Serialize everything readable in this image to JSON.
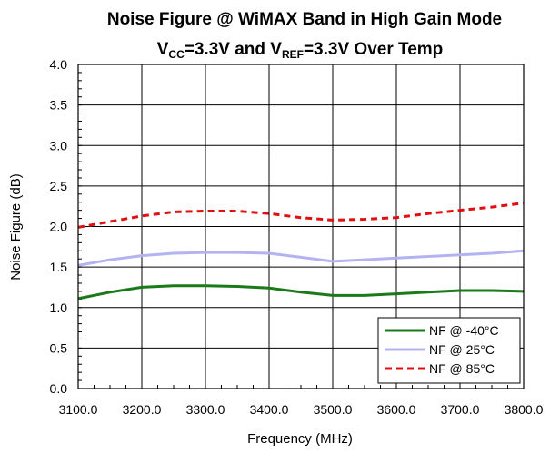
{
  "chart_data": {
    "type": "line",
    "title": "Noise Figure @ WiMAX Band in High Gain Mode",
    "subtitle": {
      "parts": [
        {
          "text": "V",
          "sub": false
        },
        {
          "text": "CC",
          "sub": true
        },
        {
          "text": "=3.3V and V",
          "sub": false
        },
        {
          "text": "REF",
          "sub": true
        },
        {
          "text": "=3.3V Over Temp",
          "sub": false
        }
      ]
    },
    "xlabel": "Frequency (MHz)",
    "ylabel": "Noise Figure (dB)",
    "xlim": [
      3100,
      3800
    ],
    "ylim": [
      0,
      4
    ],
    "x_ticks": [
      3100,
      3200,
      3300,
      3400,
      3500,
      3600,
      3700,
      3800
    ],
    "x_tick_labels": [
      "3100.0",
      "3200.0",
      "3300.0",
      "3400.0",
      "3500.0",
      "3600.0",
      "3700.0",
      "3800.0"
    ],
    "y_ticks": [
      0,
      0.5,
      1,
      1.5,
      2,
      2.5,
      3,
      3.5,
      4
    ],
    "y_tick_labels": [
      "0.0",
      "0.5",
      "1.0",
      "1.5",
      "2.0",
      "2.5",
      "3.0",
      "3.5",
      "4.0"
    ],
    "grid": true,
    "legend_position": "bottom-right",
    "x": [
      3100,
      3150,
      3200,
      3250,
      3300,
      3350,
      3400,
      3450,
      3500,
      3550,
      3600,
      3650,
      3700,
      3750,
      3800
    ],
    "series": [
      {
        "name": "NF @ -40°C",
        "color": "#1a7a1a",
        "dash": "solid",
        "values": [
          1.11,
          1.19,
          1.25,
          1.27,
          1.27,
          1.26,
          1.24,
          1.19,
          1.15,
          1.15,
          1.17,
          1.19,
          1.21,
          1.21,
          1.2
        ]
      },
      {
        "name": "NF @ 25°C",
        "color": "#b3b3f2",
        "dash": "solid",
        "values": [
          1.52,
          1.59,
          1.64,
          1.67,
          1.68,
          1.68,
          1.67,
          1.62,
          1.57,
          1.59,
          1.61,
          1.63,
          1.65,
          1.67,
          1.7
        ]
      },
      {
        "name": "NF @ 85°C",
        "color": "#e01010",
        "dash": "dashed",
        "values": [
          1.99,
          2.06,
          2.13,
          2.18,
          2.19,
          2.19,
          2.16,
          2.11,
          2.08,
          2.09,
          2.11,
          2.16,
          2.2,
          2.24,
          2.29
        ]
      }
    ]
  }
}
